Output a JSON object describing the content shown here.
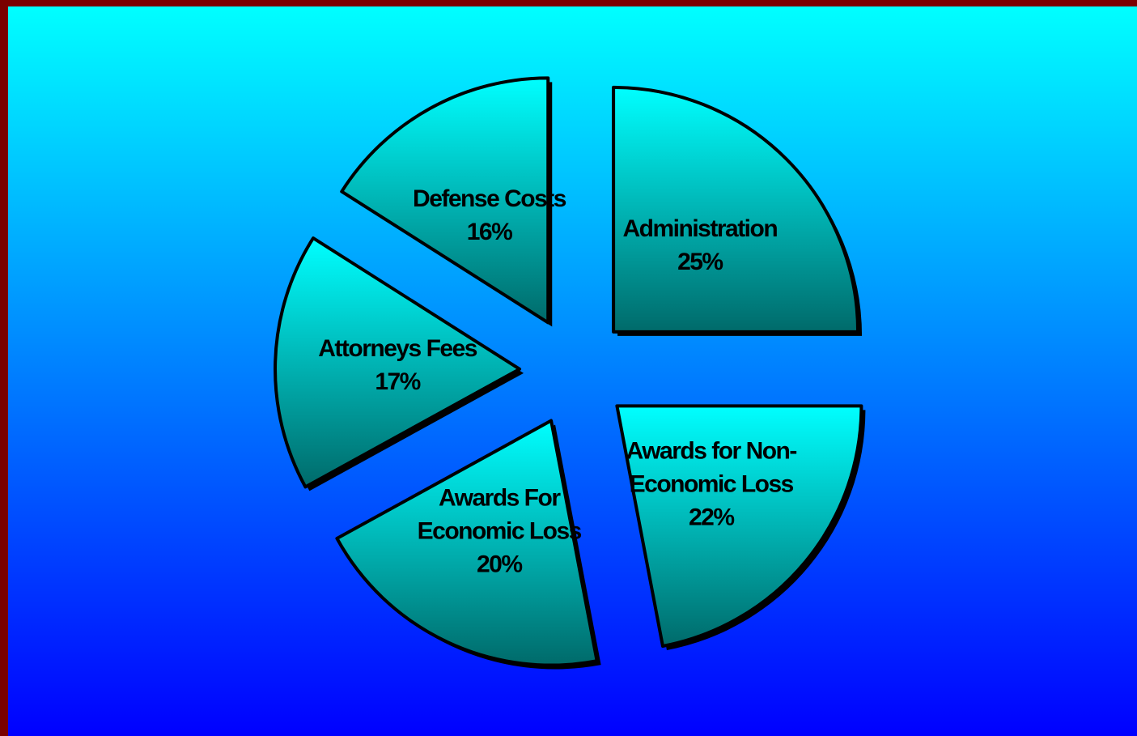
{
  "chart_data": {
    "type": "pie",
    "categories": [
      "Administration",
      "Awards for Non-Economic Loss",
      "Awards For Economic Loss",
      "Attorneys Fees",
      "Defense Costs"
    ],
    "values": [
      25,
      22,
      20,
      17,
      16
    ],
    "value_labels": [
      "25%",
      "22%",
      "20%",
      "17%",
      "16%"
    ],
    "color": "#00ffff"
  }
}
